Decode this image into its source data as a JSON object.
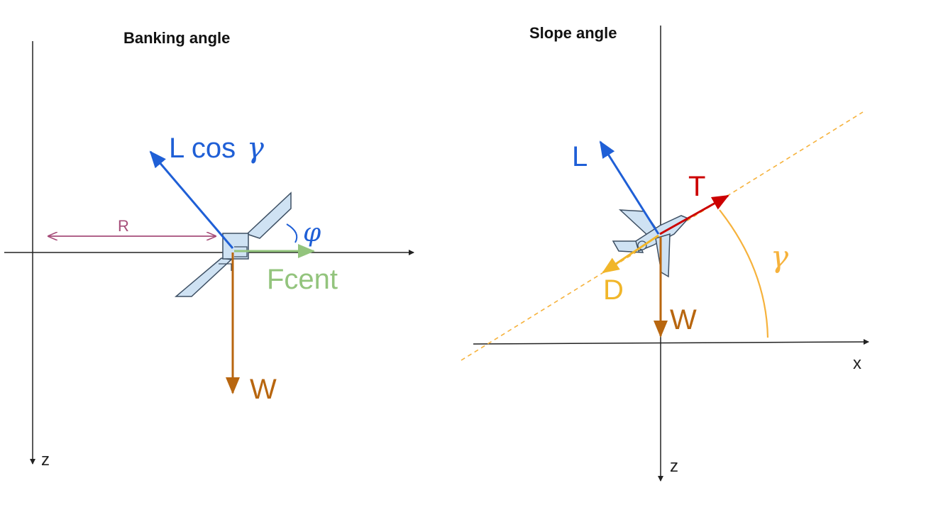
{
  "banking": {
    "title": "Banking angle",
    "z_label": "z",
    "radius_label": "R",
    "lift_label": "L cos",
    "lift_symbol": "γ",
    "angle_symbol": "φ",
    "centrifugal_label": "Fcent",
    "weight_label": "W"
  },
  "slope": {
    "title": "Slope angle",
    "x_label": "x",
    "z_label": "z",
    "lift_label": "L",
    "thrust_label": "T",
    "drag_label": "D",
    "weight_label": "W",
    "angle_symbol": "γ"
  },
  "colors": {
    "axis": "#222222",
    "lift": "#1f5fd6",
    "weight": "#b8660f",
    "centrifugal": "#93c47d",
    "radius": "#a64d79",
    "thrust": "#cc0000",
    "drag": "#f1b62a",
    "gamma": "#f6b23c",
    "aircraft_fill": "#cfe2f3",
    "aircraft_stroke": "#3d4f63"
  }
}
